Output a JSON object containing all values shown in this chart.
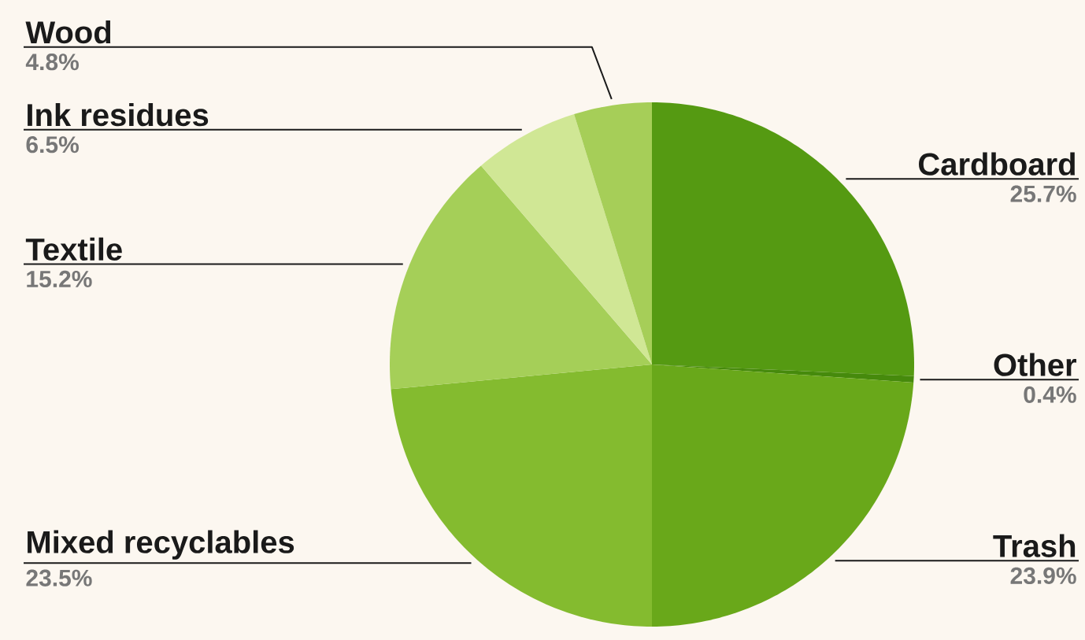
{
  "chart_data": {
    "type": "pie",
    "categories": [
      "Cardboard",
      "Other",
      "Trash",
      "Mixed recyclables",
      "Textile",
      "Ink residues",
      "Wood"
    ],
    "values": [
      25.7,
      0.4,
      23.9,
      23.5,
      15.2,
      6.5,
      4.8
    ],
    "colors": [
      "#559a12",
      "#468a0c",
      "#69a81a",
      "#84bb2f",
      "#a5cf58",
      "#d0e795",
      "#a6ce58"
    ],
    "value_labels": [
      "25.7%",
      "0.4%",
      "23.9%",
      "23.5%",
      "15.2%",
      "6.5%",
      "4.8%"
    ]
  }
}
